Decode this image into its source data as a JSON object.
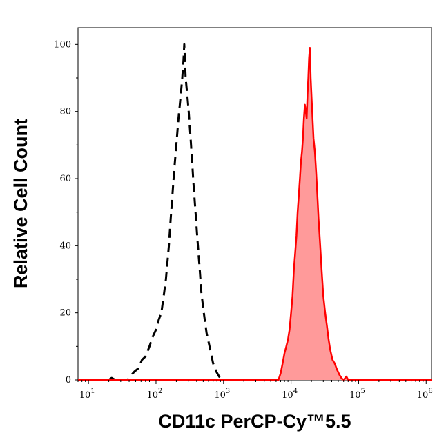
{
  "chart_data": {
    "type": "area",
    "title": "",
    "xlabel": "CD11c PerCP-Cy™5.5",
    "ylabel": "Relative Cell Count",
    "x_scale": "log",
    "xlim": [
      7,
      1200000
    ],
    "ylim": [
      0,
      105
    ],
    "x_ticks": [
      {
        "base": "10",
        "exp": "1",
        "value": 10
      },
      {
        "base": "10",
        "exp": "2",
        "value": 100
      },
      {
        "base": "10",
        "exp": "3",
        "value": 1000
      },
      {
        "base": "10",
        "exp": "4",
        "value": 10000
      },
      {
        "base": "10",
        "exp": "5",
        "value": 100000
      },
      {
        "base": "10",
        "exp": "6",
        "value": 1000000
      }
    ],
    "y_ticks": [
      0,
      20,
      40,
      60,
      80,
      100
    ],
    "grid": false,
    "legend": "none",
    "series": [
      {
        "style": "dashed",
        "color": "#000000",
        "fill": "none",
        "points": [
          [
            7,
            0
          ],
          [
            20,
            0
          ],
          [
            22,
            0.6
          ],
          [
            25,
            0
          ],
          [
            38,
            0
          ],
          [
            42,
            1.2
          ],
          [
            48,
            2.5
          ],
          [
            55,
            3.5
          ],
          [
            62,
            6
          ],
          [
            70,
            7
          ],
          [
            80,
            10
          ],
          [
            90,
            13
          ],
          [
            100,
            15
          ],
          [
            110,
            18
          ],
          [
            120,
            20
          ],
          [
            130,
            25
          ],
          [
            140,
            30
          ],
          [
            155,
            40
          ],
          [
            165,
            48
          ],
          [
            175,
            55
          ],
          [
            185,
            62
          ],
          [
            200,
            70
          ],
          [
            215,
            78
          ],
          [
            230,
            84
          ],
          [
            245,
            90
          ],
          [
            255,
            95
          ],
          [
            262,
            100
          ],
          [
            275,
            90
          ],
          [
            290,
            85
          ],
          [
            305,
            80
          ],
          [
            320,
            74
          ],
          [
            340,
            66
          ],
          [
            360,
            58
          ],
          [
            385,
            50
          ],
          [
            410,
            42
          ],
          [
            440,
            34
          ],
          [
            470,
            26
          ],
          [
            510,
            20
          ],
          [
            560,
            14
          ],
          [
            620,
            10
          ],
          [
            700,
            5
          ],
          [
            780,
            2.5
          ],
          [
            860,
            1
          ],
          [
            950,
            0
          ],
          [
            1300,
            0
          ]
        ]
      },
      {
        "style": "solid",
        "color": "#ff0000",
        "fill": "#ff9a9a",
        "points": [
          [
            7,
            0
          ],
          [
            6500,
            0
          ],
          [
            7000,
            2
          ],
          [
            7500,
            5
          ],
          [
            8000,
            8
          ],
          [
            8500,
            10
          ],
          [
            9000,
            12
          ],
          [
            9500,
            15
          ],
          [
            10000,
            20
          ],
          [
            10500,
            25
          ],
          [
            11000,
            33
          ],
          [
            11500,
            38
          ],
          [
            12000,
            43
          ],
          [
            12500,
            50
          ],
          [
            13000,
            55
          ],
          [
            13500,
            60
          ],
          [
            14000,
            65
          ],
          [
            14500,
            68
          ],
          [
            15000,
            72
          ],
          [
            15500,
            78
          ],
          [
            16000,
            82
          ],
          [
            16500,
            80
          ],
          [
            17000,
            78
          ],
          [
            17500,
            85
          ],
          [
            18000,
            90
          ],
          [
            18500,
            96
          ],
          [
            19000,
            99
          ],
          [
            19500,
            90
          ],
          [
            20000,
            85
          ],
          [
            20800,
            78
          ],
          [
            21500,
            72
          ],
          [
            22500,
            68
          ],
          [
            23500,
            62
          ],
          [
            24500,
            55
          ],
          [
            25500,
            48
          ],
          [
            27000,
            40
          ],
          [
            28500,
            32
          ],
          [
            30000,
            25
          ],
          [
            32000,
            20
          ],
          [
            34000,
            16
          ],
          [
            36000,
            12
          ],
          [
            38000,
            9
          ],
          [
            41000,
            6
          ],
          [
            44000,
            5
          ],
          [
            48000,
            3
          ],
          [
            52000,
            1.5
          ],
          [
            56000,
            0.5
          ],
          [
            60000,
            0
          ],
          [
            66000,
            1
          ],
          [
            70000,
            0
          ],
          [
            1200000,
            0
          ]
        ]
      }
    ]
  }
}
